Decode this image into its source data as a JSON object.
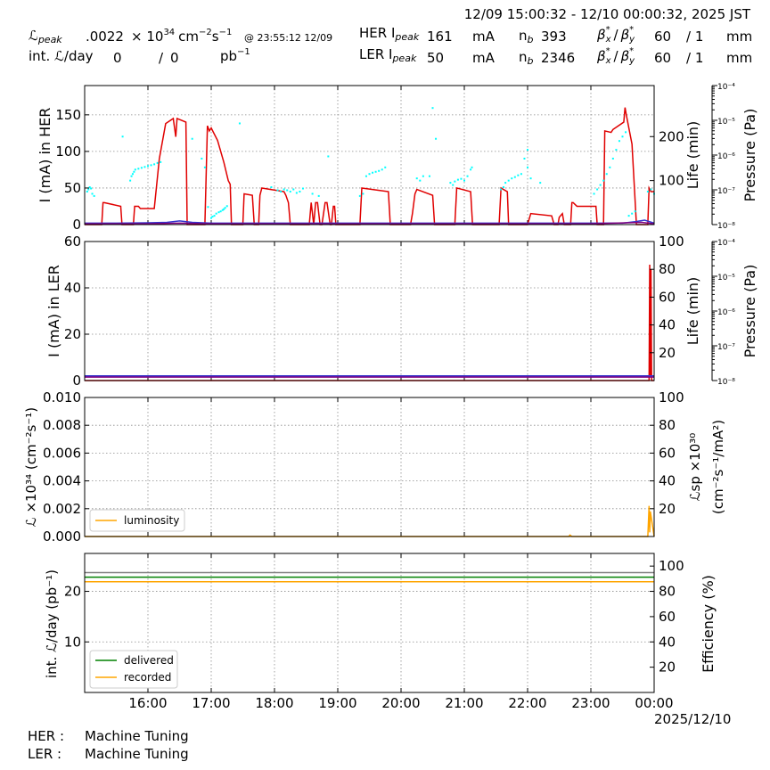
{
  "header": {
    "time_range": "12/09 15:00:32 - 12/10 00:00:32, 2025 JST",
    "lum_peak_label": "ℒ",
    "lum_peak_sub": "peak",
    "lum_peak_value": ".0022",
    "lum_unit_base": "× 10",
    "lum_unit_exp": "34",
    "lum_unit_cm": "cm",
    "lum_unit_cm_exp": "−2",
    "lum_unit_s": "s",
    "lum_unit_s_exp": "−1",
    "lum_peak_time": "@ 23:55:12 12/09",
    "int_lum_label": "int. ℒ/day",
    "int_lum_value1": "0",
    "int_lum_slash": "/",
    "int_lum_value2": "0",
    "int_lum_unit": "pb",
    "int_lum_unit_exp": "−1",
    "her_label": "HER I",
    "her_sub": "peak",
    "her_value": "161",
    "her_unit": "mA",
    "her_nb_label": "n",
    "her_nb_sub": "b",
    "her_nb_value": "393",
    "her_beta_x": "60",
    "her_beta_y": "/ 1",
    "her_beta_unit": "mm",
    "ler_label": "LER I",
    "ler_sub": "peak",
    "ler_value": "50",
    "ler_unit": "mA",
    "ler_nb_label": "n",
    "ler_nb_sub": "b",
    "ler_nb_value": "2346",
    "ler_beta_x": "60",
    "ler_beta_y": "/ 1",
    "ler_beta_unit": "mm",
    "beta_label": "β",
    "beta_x_sub": "x",
    "beta_y_sub": "y",
    "beta_sup": "*",
    "beta_slash": "/"
  },
  "footer": {
    "her_status_label": "HER :",
    "her_status": "Machine Tuning",
    "ler_status_label": "LER :",
    "ler_status": "Machine Tuning"
  },
  "colors": {
    "current": "#e00000",
    "life": "#00ffff",
    "pressure": "#3333cc",
    "pressure2": "#800080",
    "luminosity": "#ffa500",
    "delivered": "#008000",
    "recorded": "#ffa500",
    "efficiency": "#808080"
  },
  "chart_data": [
    {
      "type": "line",
      "id": "her",
      "ylabel": "I (mA) in HER",
      "y2label": "Life (min)",
      "y3label": "Pressure (Pa)",
      "ylim": [
        0,
        190
      ],
      "yticks": [
        0,
        50,
        100,
        150
      ],
      "y2lim": [
        0,
        316
      ],
      "y2ticks": [
        100,
        200
      ],
      "y3ticks": [
        "10⁻⁸",
        "10⁻⁷",
        "10⁻⁶",
        "10⁻⁵",
        "10⁻⁴"
      ],
      "xlim": [
        15.0,
        24.0
      ],
      "xticks": [
        "16:00",
        "17:00",
        "18:00",
        "19:00",
        "20:00",
        "21:00",
        "22:00",
        "23:00",
        "00:00"
      ],
      "grid": true,
      "series": [
        {
          "role": "current",
          "x": [
            15.0,
            15.27,
            15.29,
            15.31,
            15.57,
            15.59,
            15.77,
            15.79,
            15.85,
            15.88,
            16.1,
            16.18,
            16.28,
            16.4,
            16.44,
            16.46,
            16.6,
            16.62,
            16.65,
            16.7,
            16.8,
            16.9,
            16.94,
            16.97,
            17.0,
            17.1,
            17.2,
            17.27,
            17.3,
            17.32,
            17.5,
            17.52,
            17.65,
            17.68,
            17.75,
            17.77,
            17.8,
            18.15,
            18.18,
            18.22,
            18.25,
            18.55,
            18.58,
            18.62,
            18.65,
            18.68,
            18.72,
            18.75,
            18.8,
            18.83,
            18.88,
            18.9,
            18.93,
            18.95,
            18.97,
            19.35,
            19.38,
            19.8,
            19.83,
            20.15,
            20.18,
            20.22,
            20.25,
            20.5,
            20.53,
            20.85,
            20.88,
            21.1,
            21.13,
            21.55,
            21.58,
            21.68,
            21.7,
            22.0,
            22.05,
            22.38,
            22.42,
            22.48,
            22.5,
            22.55,
            22.58,
            22.68,
            22.7,
            22.72,
            22.78,
            23.08,
            23.1,
            23.2,
            23.22,
            23.32,
            23.35,
            23.52,
            23.54,
            23.56,
            23.65,
            23.72,
            23.82,
            23.9,
            23.92,
            23.95,
            24.0
          ],
          "y": [
            0,
            0,
            30,
            30,
            25,
            0,
            0,
            25,
            25,
            22,
            22,
            90,
            138,
            145,
            120,
            145,
            140,
            0,
            0,
            0,
            0,
            0,
            135,
            128,
            132,
            115,
            85,
            60,
            55,
            0,
            0,
            42,
            40,
            0,
            0,
            40,
            50,
            45,
            40,
            30,
            0,
            0,
            30,
            0,
            30,
            30,
            0,
            0,
            30,
            30,
            0,
            0,
            25,
            25,
            0,
            0,
            50,
            45,
            0,
            0,
            15,
            42,
            48,
            40,
            0,
            0,
            50,
            45,
            0,
            0,
            50,
            45,
            0,
            0,
            15,
            12,
            0,
            0,
            10,
            15,
            0,
            0,
            30,
            30,
            25,
            25,
            0,
            0,
            128,
            126,
            130,
            140,
            160,
            150,
            110,
            0,
            0,
            0,
            50,
            45,
            45
          ]
        },
        {
          "role": "life",
          "x": [
            15.04,
            15.06,
            15.08,
            15.1,
            15.12,
            15.15,
            15.6,
            15.72,
            15.74,
            15.76,
            15.78,
            15.8,
            15.85,
            15.9,
            15.95,
            16.0,
            16.05,
            16.1,
            16.15,
            16.2,
            16.7,
            16.85,
            16.9,
            16.95,
            17.0,
            17.02,
            17.05,
            17.08,
            17.12,
            17.15,
            17.18,
            17.2,
            17.22,
            17.25,
            17.45,
            17.95,
            18.05,
            18.1,
            18.15,
            18.2,
            18.25,
            18.3,
            18.35,
            18.4,
            18.45,
            18.6,
            18.7,
            18.85,
            19.35,
            19.4,
            19.45,
            19.5,
            19.55,
            19.6,
            19.65,
            19.7,
            19.75,
            20.25,
            20.3,
            20.35,
            20.45,
            20.5,
            20.55,
            20.78,
            20.82,
            20.85,
            20.9,
            20.95,
            21.0,
            21.05,
            21.1,
            21.12,
            21.58,
            21.62,
            21.65,
            21.7,
            21.75,
            21.8,
            21.85,
            21.9,
            21.95,
            22.0,
            22.05,
            22.0,
            22.2,
            23.05,
            23.1,
            23.15,
            23.2,
            23.25,
            23.3,
            23.35,
            23.4,
            23.45,
            23.5,
            23.55,
            23.6,
            23.65,
            23.7,
            23.9,
            23.95,
            24.0
          ],
          "y": [
            75,
            80,
            85,
            82,
            70,
            65,
            200,
            100,
            110,
            115,
            120,
            125,
            127,
            129,
            131,
            133,
            135,
            137,
            140,
            142,
            195,
            150,
            130,
            40,
            15,
            18,
            20,
            25,
            28,
            30,
            33,
            35,
            38,
            42,
            230,
            85,
            78,
            75,
            80,
            78,
            75,
            80,
            72,
            75,
            82,
            70,
            65,
            155,
            65,
            70,
            110,
            115,
            118,
            120,
            122,
            125,
            130,
            105,
            100,
            110,
            110,
            265,
            195,
            95,
            90,
            98,
            102,
            104,
            100,
            110,
            125,
            130,
            80,
            85,
            95,
            100,
            105,
            108,
            112,
            115,
            150,
            170,
            105,
            130,
            95,
            70,
            80,
            90,
            100,
            115,
            130,
            150,
            170,
            190,
            200,
            210,
            20,
            25,
            30,
            75,
            80,
            70
          ]
        },
        {
          "role": "pressure",
          "x": [
            15.0,
            15.5,
            16.0,
            16.3,
            16.5,
            16.7,
            17.0,
            17.5,
            18.0,
            18.5,
            19.0,
            19.5,
            20.0,
            20.5,
            21.0,
            21.5,
            22.0,
            22.5,
            23.0,
            23.5,
            23.7,
            23.85,
            24.0
          ],
          "y": [
            2,
            2,
            2.5,
            3,
            5,
            3,
            2,
            2,
            2,
            2,
            2,
            2,
            2,
            2,
            2,
            2,
            2,
            2,
            2,
            2,
            4,
            6,
            2
          ]
        },
        {
          "role": "pressure2",
          "x": [
            15.0,
            16.0,
            16.5,
            17.0,
            18.0,
            19.0,
            20.0,
            21.0,
            22.0,
            23.0,
            23.8,
            24.0
          ],
          "y": [
            1,
            1,
            2,
            1,
            1,
            1,
            1,
            1,
            1,
            1,
            3,
            1
          ]
        }
      ]
    },
    {
      "type": "line",
      "id": "ler",
      "ylabel": "I (mA) in LER",
      "y2label": "Life (min)",
      "y3label": "Pressure (Pa)",
      "ylim": [
        0,
        60
      ],
      "yticks": [
        0,
        20,
        40,
        60
      ],
      "y2lim": [
        0,
        100
      ],
      "y2ticks": [
        20,
        40,
        60,
        80,
        100
      ],
      "y3ticks": [
        "10⁻⁸",
        "10⁻⁷",
        "10⁻⁶",
        "10⁻⁵",
        "10⁻⁴"
      ],
      "xlim": [
        15.0,
        24.0
      ],
      "grid": true,
      "series": [
        {
          "role": "current",
          "x": [
            15.0,
            23.9,
            23.92,
            23.93,
            23.94,
            23.95,
            23.96,
            24.0
          ],
          "y": [
            0,
            0,
            0,
            50,
            2,
            48,
            0,
            0
          ]
        },
        {
          "role": "pressure",
          "x": [
            15.0,
            24.0
          ],
          "y": [
            2,
            2
          ]
        },
        {
          "role": "pressure2",
          "x": [
            15.0,
            24.0
          ],
          "y": [
            1.5,
            1.5
          ]
        }
      ]
    },
    {
      "type": "line",
      "id": "lum",
      "ylabel": "ℒ ×10³⁴ (cm⁻²s⁻¹)",
      "y2label_line1": "ℒsp ×10³⁰",
      "y2label_line2": "(cm⁻²s⁻¹/mA²)",
      "ylim": [
        0,
        0.01
      ],
      "yticks": [
        "0.000",
        "0.002",
        "0.004",
        "0.006",
        "0.008",
        "0.010"
      ],
      "y2lim": [
        0,
        100
      ],
      "y2ticks": [
        20,
        40,
        60,
        80,
        100
      ],
      "xlim": [
        15.0,
        24.0
      ],
      "grid": true,
      "legend": [
        "luminosity"
      ],
      "legend_position": "lower-left",
      "series": [
        {
          "name": "luminosity",
          "role": "luminosity",
          "x": [
            15.0,
            22.65,
            22.67,
            22.7,
            23.9,
            23.92,
            23.93,
            23.94,
            24.0
          ],
          "y": [
            0,
            0,
            0.0001,
            0,
            0,
            0.0022,
            0.0003,
            0.0018,
            0
          ]
        }
      ]
    },
    {
      "type": "line",
      "id": "intlum",
      "ylabel": "int. ℒ/day (pb⁻¹)",
      "y2label": "Efficiency (%)",
      "ylim": [
        0,
        27.5
      ],
      "yticks": [
        10,
        20
      ],
      "y2lim": [
        0,
        110
      ],
      "y2ticks": [
        20,
        40,
        60,
        80,
        100
      ],
      "xlim": [
        15.0,
        24.0
      ],
      "xticks": [
        "16:00",
        "17:00",
        "18:00",
        "19:00",
        "20:00",
        "21:00",
        "22:00",
        "23:00",
        "00:00"
      ],
      "xlabel": "2025/12/10",
      "grid": true,
      "legend": [
        "delivered",
        "recorded"
      ],
      "legend_position": "lower-left",
      "series": [
        {
          "name": "delivered",
          "role": "delivered",
          "x": [
            15.0,
            24.0
          ],
          "y": [
            22.8,
            22.8
          ]
        },
        {
          "name": "recorded",
          "role": "recorded",
          "x": [
            15.0,
            24.0
          ],
          "y": [
            21.9,
            21.9
          ]
        },
        {
          "role": "efficiency",
          "x": [
            15.0,
            24.0
          ],
          "y": [
            23.7,
            23.7
          ]
        }
      ]
    }
  ]
}
